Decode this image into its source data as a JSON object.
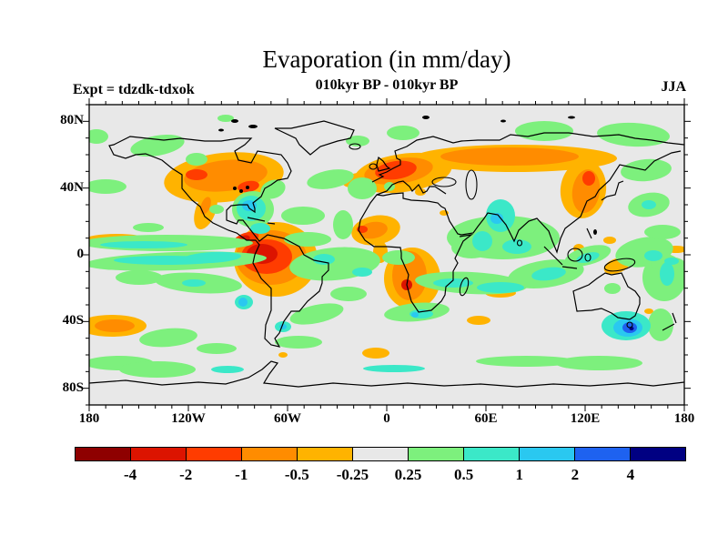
{
  "header": {
    "title": "Evaporation (in mm/day)",
    "subtitle": "010kyr BP - 010kyr BP",
    "experiment": "Expt = tdzdk-tdxok",
    "season": "JJA"
  },
  "map": {
    "background": "#E8E8E8",
    "coastline_color": "#000000",
    "extent": {
      "lon_min": -180,
      "lon_max": 180,
      "lat_min": -90,
      "lat_max": 90
    },
    "x_axis": {
      "minor_step_deg": 10,
      "major_step_deg": 60,
      "ticks": [
        {
          "label": "180",
          "lon": -180
        },
        {
          "label": "120W",
          "lon": -120
        },
        {
          "label": "60W",
          "lon": -60
        },
        {
          "label": "0",
          "lon": 0
        },
        {
          "label": "60E",
          "lon": 60
        },
        {
          "label": "120E",
          "lon": 120
        },
        {
          "label": "180",
          "lon": 180
        }
      ]
    },
    "y_axis": {
      "minor_step_deg": 10,
      "major_step_deg": 40,
      "ticks": [
        {
          "label": "80N",
          "lat": 80
        },
        {
          "label": "40N",
          "lat": 40
        },
        {
          "label": "0",
          "lat": 0
        },
        {
          "label": "40S",
          "lat": -40
        },
        {
          "label": "80S",
          "lat": -80
        }
      ]
    },
    "regions": [
      [
        "a",
        148,
        80,
        66,
        27,
        -6
      ],
      [
        "a",
        128,
        116,
        11,
        22,
        20
      ],
      [
        "a",
        205,
        170,
        46,
        41,
        0
      ],
      [
        "a",
        25,
        243,
        38,
        12,
        0
      ],
      [
        "a",
        30,
        148,
        34,
        6,
        0
      ],
      [
        "a",
        345,
        75,
        54,
        21,
        -8
      ],
      [
        "a",
        295,
        83,
        17,
        8,
        -10
      ],
      [
        "a",
        468,
        59,
        112,
        15,
        0
      ],
      [
        "a",
        543,
        93,
        25,
        32,
        8
      ],
      [
        "a",
        315,
        138,
        27,
        16,
        -10
      ],
      [
        "a",
        320,
        162,
        8,
        12,
        0
      ],
      [
        "a",
        355,
        191,
        31,
        34,
        0
      ],
      [
        "a",
        452,
        207,
        17,
        5,
        0
      ],
      [
        "a",
        428,
        237,
        13,
        5,
        0
      ],
      [
        "a",
        315,
        273,
        15,
        6,
        0
      ],
      [
        "a",
        213,
        275,
        5,
        3,
        0
      ],
      [
        "a",
        580,
        177,
        15,
        8,
        -20
      ],
      [
        "a",
        645,
        159,
        12,
        4,
        0
      ],
      [
        "a",
        615,
        227,
        5,
        3,
        0
      ],
      [
        "a",
        538,
        158,
        6,
        5,
        0
      ],
      [
        "a",
        572,
        149,
        7,
        4,
        0
      ],
      [
        "a",
        364,
        96,
        6,
        4,
        0
      ],
      [
        "a",
        390,
        119,
        5,
        3,
        0
      ],
      [
        "o",
        150,
        78,
        46,
        17,
        -6
      ],
      [
        "o",
        128,
        111,
        5,
        10,
        20
      ],
      [
        "o",
        28,
        243,
        22,
        7,
        0
      ],
      [
        "o",
        340,
        73,
        38,
        14,
        -8
      ],
      [
        "o",
        462,
        57,
        76,
        10,
        0
      ],
      [
        "o",
        546,
        95,
        15,
        24,
        8
      ],
      [
        "o",
        312,
        138,
        16,
        9,
        -10
      ],
      [
        "o",
        352,
        188,
        19,
        27,
        0
      ],
      [
        "o",
        200,
        168,
        39,
        30,
        0
      ],
      [
        "r1",
        337,
        72,
        23,
        10,
        -8
      ],
      [
        "r1",
        195,
        167,
        28,
        19,
        0
      ],
      [
        "r1",
        172,
        148,
        15,
        7,
        -20
      ],
      [
        "r1",
        549,
        81,
        7,
        8,
        0
      ],
      [
        "r1",
        300,
        137,
        6,
        4,
        0
      ],
      [
        "r1",
        175,
        90,
        12,
        6,
        -10
      ],
      [
        "r1",
        118,
        77,
        12,
        6,
        0
      ],
      [
        "r2",
        190,
        164,
        17,
        11,
        0
      ],
      [
        "r2",
        349,
        198,
        6,
        6,
        0
      ],
      [
        "r2",
        170,
        148,
        7,
        4,
        -20
      ],
      [
        "g",
        85,
        152,
        95,
        9,
        0
      ],
      [
        "g",
        95,
        172,
        100,
        10,
        -2
      ],
      [
        "g",
        120,
        196,
        48,
        11,
        4
      ],
      [
        "g",
        55,
        190,
        26,
        8,
        0
      ],
      [
        "g",
        87,
        256,
        32,
        10,
        -5
      ],
      [
        "g",
        33,
        284,
        38,
        8,
        0
      ],
      [
        "g",
        75,
        291,
        42,
        9,
        0
      ],
      [
        "g",
        140,
        268,
        22,
        6,
        0
      ],
      [
        "g",
        180,
        115,
        23,
        20,
        0
      ],
      [
        "g",
        202,
        93,
        14,
        10,
        -20
      ],
      [
        "g",
        270,
        175,
        50,
        18,
        -5
      ],
      [
        "g",
        235,
        122,
        24,
        10,
        0
      ],
      [
        "g",
        279,
        132,
        11,
        16,
        0
      ],
      [
        "g",
        240,
        148,
        26,
        8,
        0
      ],
      [
        "g",
        250,
        230,
        30,
        10,
        -12
      ],
      [
        "g",
        285,
        208,
        20,
        8,
        0
      ],
      [
        "g",
        230,
        261,
        26,
        7,
        0
      ],
      [
        "g",
        265,
        82,
        26,
        10,
        -10
      ],
      [
        "g",
        300,
        92,
        16,
        12,
        0
      ],
      [
        "g",
        295,
        40,
        13,
        6,
        0
      ],
      [
        "g",
        345,
        31,
        18,
        8,
        0
      ],
      [
        "g",
        500,
        29,
        32,
        11,
        0
      ],
      [
        "g",
        598,
        33,
        40,
        13,
        3
      ],
      [
        "g",
        612,
        72,
        28,
        12,
        -5
      ],
      [
        "g",
        615,
        110,
        23,
        13,
        -10
      ],
      [
        "g",
        455,
        146,
        62,
        24,
        0
      ],
      [
        "g",
        420,
        157,
        22,
        12,
        0
      ],
      [
        "g",
        340,
        168,
        18,
        8,
        0
      ],
      [
        "g",
        420,
        196,
        62,
        12,
        3
      ],
      [
        "g",
        502,
        186,
        42,
        15,
        -8
      ],
      [
        "g",
        548,
        166,
        26,
        10,
        -15
      ],
      [
        "g",
        610,
        162,
        32,
        16,
        -10
      ],
      [
        "g",
        632,
        190,
        24,
        26,
        0
      ],
      [
        "g",
        575,
        202,
        9,
        6,
        0
      ],
      [
        "g",
        480,
        282,
        55,
        6,
        0
      ],
      [
        "g",
        560,
        284,
        48,
        8,
        0
      ],
      [
        "g",
        628,
        242,
        14,
        18,
        0
      ],
      [
        "g",
        75,
        45,
        30,
        11,
        -10
      ],
      [
        "g",
        8,
        35,
        13,
        8,
        0
      ],
      [
        "g",
        18,
        90,
        23,
        8,
        0
      ],
      [
        "g",
        65,
        135,
        17,
        5,
        0
      ],
      [
        "g",
        118,
        60,
        12,
        7,
        0
      ],
      [
        "g",
        150,
        15,
        9,
        4,
        0
      ],
      [
        "g",
        636,
        175,
        19,
        8,
        0
      ],
      [
        "g",
        630,
        140,
        20,
        8,
        0
      ],
      [
        "g",
        360,
        228,
        36,
        10,
        -5
      ],
      [
        "g",
        140,
        115,
        8,
        5,
        0
      ],
      [
        "g",
        330,
        90,
        6,
        5,
        0
      ],
      [
        "t",
        60,
        154,
        48,
        4,
        0
      ],
      [
        "t",
        85,
        171,
        58,
        5,
        0
      ],
      [
        "t",
        135,
        168,
        32,
        6,
        -3
      ],
      [
        "t",
        115,
        196,
        13,
        4,
        0
      ],
      [
        "t",
        170,
        217,
        10,
        8,
        0
      ],
      [
        "t",
        178,
        114,
        16,
        14,
        0
      ],
      [
        "t",
        188,
        136,
        11,
        6,
        0
      ],
      [
        "t",
        258,
        170,
        12,
        6,
        0
      ],
      [
        "t",
        300,
        184,
        11,
        5,
        0
      ],
      [
        "t",
        452,
        122,
        16,
        18,
        0
      ],
      [
        "t",
        470,
        156,
        16,
        8,
        0
      ],
      [
        "t",
        432,
        150,
        11,
        11,
        0
      ],
      [
        "t",
        400,
        196,
        22,
        5,
        0
      ],
      [
        "t",
        452,
        201,
        26,
        6,
        0
      ],
      [
        "t",
        505,
        186,
        19,
        7,
        -8
      ],
      [
        "t",
        548,
        168,
        13,
        5,
        -15
      ],
      [
        "t",
        620,
        166,
        10,
        6,
        0
      ],
      [
        "t",
        635,
        186,
        8,
        13,
        0
      ],
      [
        "t",
        615,
        110,
        8,
        5,
        0
      ],
      [
        "t",
        590,
        243,
        27,
        16,
        0
      ],
      [
        "t",
        365,
        230,
        13,
        5,
        0
      ],
      [
        "t",
        213,
        244,
        9,
        6,
        0
      ],
      [
        "t",
        335,
        290,
        34,
        4,
        0
      ],
      [
        "t",
        152,
        291,
        18,
        4,
        0
      ],
      [
        "t",
        640,
        172,
        8,
        4,
        0
      ],
      [
        "s",
        169,
        217,
        5,
        5,
        0
      ],
      [
        "s",
        176,
        111,
        8,
        6,
        0
      ],
      [
        "s",
        448,
        125,
        7,
        6,
        0
      ],
      [
        "s",
        592,
        245,
        16,
        10,
        0
      ],
      [
        "s",
        213,
        244,
        4,
        3,
        0
      ],
      [
        "s",
        358,
        231,
        4,
        3,
        0
      ],
      [
        "b",
        594,
        245,
        8,
        6,
        0
      ],
      [
        "n",
        596,
        246,
        2.5,
        2,
        0
      ]
    ]
  },
  "colorbar": {
    "labels": [
      "-4",
      "-2",
      "-1",
      "-0.5",
      "-0.25",
      "0.25",
      "0.5",
      "1",
      "2",
      "4"
    ],
    "colors": [
      "#8E0000",
      "#DC1400",
      "#FF3C00",
      "#FF8C00",
      "#FFB300",
      "#E8E8E8",
      "#7DF07D",
      "#3BE8C8",
      "#2AC8F0",
      "#1E62F0",
      "#000082"
    ],
    "level_colors": {
      "r2": "#DC1400",
      "r1": "#FF3C00",
      "o": "#FF8C00",
      "a": "#FFB300",
      "g": "#7DF07D",
      "t": "#3BE8C8",
      "s": "#2AC8F0",
      "b": "#1E62F0",
      "n": "#000082"
    },
    "level_bins": {
      "r2": "-4 to -2",
      "r1": "-2 to -1",
      "o": "-1 to -0.5",
      "a": "-0.5 to -0.25",
      "g": "0.25 to 0.5",
      "t": "0.5 to 1",
      "s": "1 to 2",
      "b": "2 to 4",
      "n": "> 4"
    }
  },
  "chart_data": {
    "type": "heatmap",
    "title": "Evaporation (in mm/day)",
    "subtitle": "010kyr BP - 010kyr BP",
    "experiment": "tdzdk-tdxok",
    "season": "JJA",
    "units": "mm/day",
    "projection": "equirectangular world map, 90N-90S, 180W-180E",
    "contour_levels": [
      -4,
      -2,
      -1,
      -0.5,
      -0.25,
      0.25,
      0.5,
      1,
      2,
      4
    ],
    "palette": [
      "#8E0000",
      "#DC1400",
      "#FF3C00",
      "#FF8C00",
      "#FFB300",
      "#E8E8E8",
      "#7DF07D",
      "#3BE8C8",
      "#2AC8F0",
      "#1E62F0",
      "#000082"
    ],
    "notable_anomalies": [
      "Negative (orange/red, up to -4 mm/day): central and eastern North America, Europe, mid-latitude Siberia band, NE China/Korea, Amazon and northern South America, West Africa, southern Africa, SE Pacific near 40S",
      "Positive (green/cyan/blue): equatorial Pacific bands, Florida/Caribbean, NW India-Pakistan, Indian Ocean bands, Southern Ocean strips, strongest (>2, locally >4 mm/day) southeast of Australia near Tasmania"
    ]
  }
}
